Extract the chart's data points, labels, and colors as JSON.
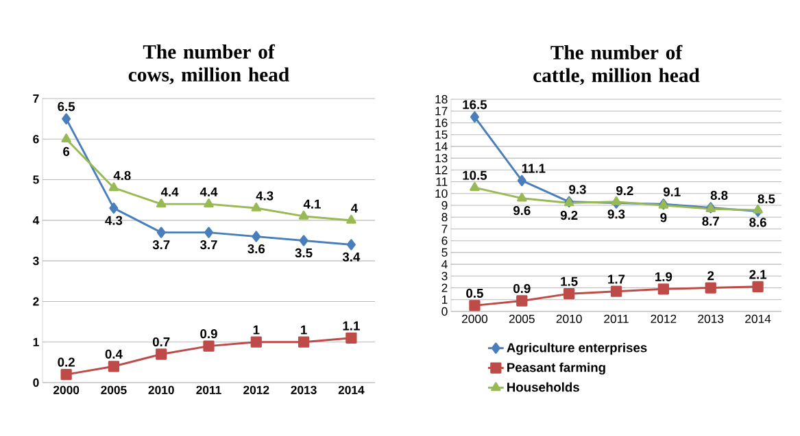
{
  "chart_data": [
    {
      "type": "line",
      "title": "The number of cows, million head",
      "categories": [
        "2000",
        "2005",
        "2010",
        "2011",
        "2012",
        "2013",
        "2014"
      ],
      "ylim": [
        0,
        7
      ],
      "yticks": [
        0,
        1,
        2,
        3,
        4,
        5,
        6,
        7
      ],
      "grid": "y",
      "data_labels": true,
      "line_style": "solid",
      "series": [
        {
          "color": "#4a7ebb",
          "marker": "diamond",
          "values": [
            6.5,
            4.3,
            3.7,
            3.7,
            3.6,
            3.5,
            3.4
          ]
        },
        {
          "color": "#be4b48",
          "marker": "square",
          "values": [
            0.2,
            0.4,
            0.7,
            0.9,
            1,
            1,
            1.1
          ]
        },
        {
          "color": "#98b954",
          "marker": "triangle",
          "values": [
            6,
            4.8,
            4.4,
            4.4,
            4.3,
            4.1,
            4
          ]
        }
      ]
    },
    {
      "type": "line",
      "title": "The number of cattle, million head",
      "categories": [
        "2000",
        "2005",
        "2010",
        "2011",
        "2012",
        "2013",
        "2014"
      ],
      "ylim": [
        0,
        18
      ],
      "yticks": [
        0,
        1,
        2,
        3,
        4,
        5,
        6,
        7,
        8,
        9,
        10,
        11,
        12,
        13,
        14,
        15,
        16,
        17,
        18
      ],
      "grid": "y",
      "data_labels": true,
      "legend": "bottom",
      "line_style": "solid",
      "series": [
        {
          "name": "Agriculture  enterprises",
          "color": "#4a7ebb",
          "marker": "diamond",
          "values": [
            16.5,
            11.1,
            9.3,
            9.2,
            9.1,
            8.8,
            8.5
          ]
        },
        {
          "name": "Peasant farming",
          "color": "#be4b48",
          "marker": "square",
          "values": [
            0.5,
            0.9,
            1.5,
            1.7,
            1.9,
            2,
            2.1
          ]
        },
        {
          "name": "Households",
          "color": "#98b954",
          "marker": "triangle",
          "values": [
            10.5,
            9.6,
            9.2,
            9.3,
            9,
            8.7,
            8.6
          ]
        }
      ]
    }
  ]
}
